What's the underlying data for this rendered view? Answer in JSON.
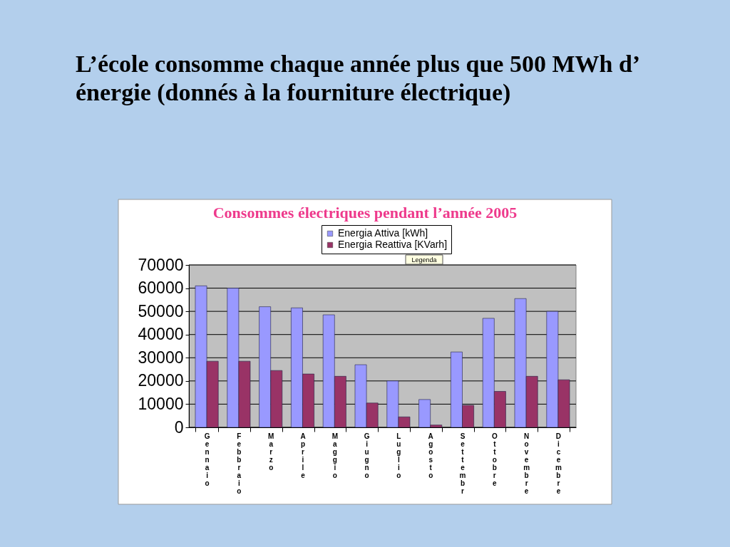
{
  "chart_data": {
    "type": "bar",
    "title": "L’école consomme chaque année plus que 500 MWh d’ énergie (donnés à la fourniture électrique)",
    "subtitle": "Consommes électriques pendant l’année 2005",
    "categories": [
      "Gennaio",
      "Febbraio",
      "Marzo",
      "Aprile",
      "Maggio",
      "Giugno",
      "Luglio",
      "Agosto",
      "Settembr",
      "Ottobre",
      "Novembre",
      "Dicembre"
    ],
    "series": [
      {
        "name": "Energia Attiva [kWh]",
        "color": "#9999ff",
        "values": [
          61000,
          60000,
          52000,
          51500,
          48500,
          27000,
          20000,
          12000,
          32500,
          47000,
          55500,
          50000
        ]
      },
      {
        "name": "Energia Reattiva [KVarh]",
        "color": "#993366",
        "values": [
          28500,
          28500,
          24500,
          23000,
          22000,
          10500,
          4500,
          1000,
          9500,
          15500,
          22000,
          20500
        ]
      }
    ],
    "ylim": [
      0,
      70000
    ],
    "yticks": [
      0,
      10000,
      20000,
      30000,
      40000,
      50000,
      60000,
      70000
    ],
    "grid": "y",
    "legend": "top",
    "annotations": [
      "Legenda"
    ]
  }
}
